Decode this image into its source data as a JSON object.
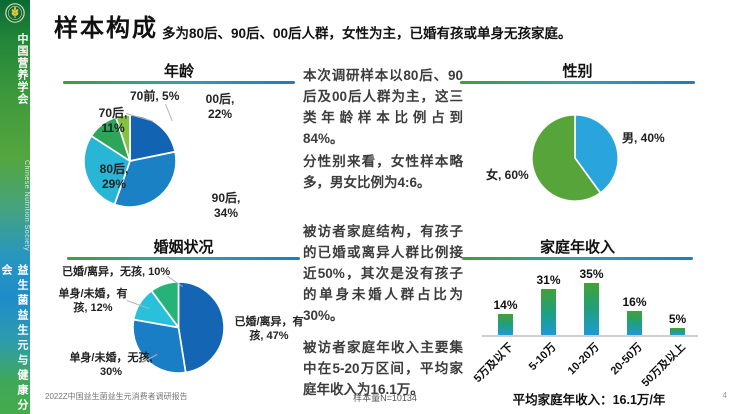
{
  "header": {
    "title": "样本构成",
    "subtitle": "多为80后、90后、00后人群，女性为主，已婚有孩或单身无孩家庭。"
  },
  "sidebar": {
    "org_cn": "中国营养学会",
    "org_en": "Chinese Nutrition Society",
    "branch": "益生菌益生元与健康分会"
  },
  "paragraphs": {
    "age": "本次调研样本以80后、90后及00后人群为主，这三类年龄样本比例占到84%。",
    "gender": "分性别来看，女性样本略多，男女比例为4:6。",
    "family": "被访者家庭结构，有孩子的已婚或离异人群比例接近50%，其次是没有孩子的单身未婚人群占比为30%。",
    "income": "被访者家庭年收入主要集中在5-20万区间，平均家庭年收入为16.1万。"
  },
  "theme": {
    "underline_gradient": [
      "#3f9e3c",
      "#2aa7a8",
      "#1f7ac8"
    ]
  },
  "chart_data": [
    {
      "id": "age",
      "type": "pie",
      "title": "年龄",
      "start_angle_deg": -90,
      "direction": "clockwise",
      "legend_position": "outside-labels",
      "slices": [
        {
          "label": "00后",
          "value": 22,
          "color": "#1263b2"
        },
        {
          "label": "90后",
          "value": 34,
          "color": "#1a82c4"
        },
        {
          "label": "80后",
          "value": 29,
          "color": "#29b5d6"
        },
        {
          "label": "70后",
          "value": 11,
          "color": "#2ea65a"
        },
        {
          "label": "70前",
          "value": 5,
          "color": "#82c341"
        }
      ]
    },
    {
      "id": "gender",
      "type": "pie",
      "title": "性别",
      "start_angle_deg": -90,
      "direction": "clockwise",
      "legend_position": "outside-labels",
      "slices": [
        {
          "label": "男",
          "value": 40,
          "color": "#29a4dc"
        },
        {
          "label": "女",
          "value": 60,
          "color": "#57a53a"
        }
      ]
    },
    {
      "id": "marital",
      "type": "pie",
      "title": "婚姻状况",
      "start_angle_deg": -90,
      "direction": "clockwise",
      "legend_position": "outside-labels",
      "slices": [
        {
          "label": "已婚/离异，有孩",
          "value": 47,
          "color": "#1565b5"
        },
        {
          "label": "单身/未婚，无孩",
          "value": 30,
          "color": "#1a7ec6"
        },
        {
          "label": "单身/未婚，有孩",
          "value": 12,
          "color": "#28c0da"
        },
        {
          "label": "已婚/离异，无孩",
          "value": 10,
          "color": "#25b377"
        }
      ]
    },
    {
      "id": "income",
      "type": "bar",
      "title": "家庭年收入",
      "categories": [
        "5万及以下",
        "5-10万",
        "10-20万",
        "20-50万",
        "50万及以上"
      ],
      "values": [
        14,
        31,
        35,
        16,
        5
      ],
      "unit": "%",
      "ylim": [
        0,
        40
      ],
      "grid": false,
      "bar_gradient": [
        "#44a134",
        "#1fa07c",
        "#1e9ad8"
      ],
      "caption_label": "平均家庭年收入：",
      "caption_value": "16.1万/年"
    }
  ],
  "footer": {
    "report": "2022Z中国益生菌益生元消费者调研报告",
    "sample": "样本量N=10134",
    "page": "4"
  }
}
